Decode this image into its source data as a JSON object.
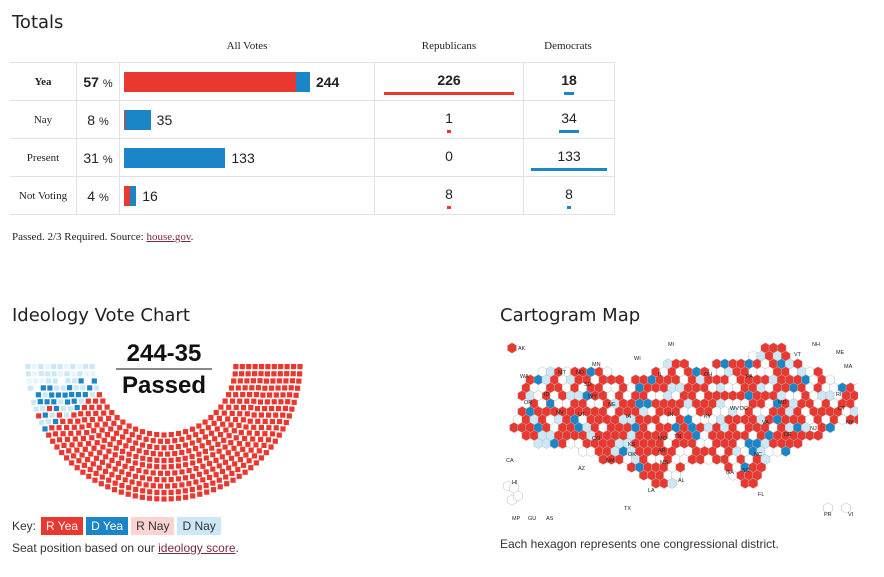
{
  "totals": {
    "title": "Totals",
    "headers": {
      "all_votes": "All Votes",
      "republicans": "Republicans",
      "democrats": "Democrats"
    },
    "pct_symbol": "%",
    "rows": [
      {
        "label": "Yea",
        "pct": "57",
        "total": "244",
        "rep": "226",
        "dem": "18"
      },
      {
        "label": "Nay",
        "pct": "8",
        "total": "35",
        "rep": "1",
        "dem": "34"
      },
      {
        "label": "Present",
        "pct": "31",
        "total": "133",
        "rep": "0",
        "dem": "133"
      },
      {
        "label": "Not Voting",
        "pct": "4",
        "total": "16",
        "rep": "8",
        "dem": "8"
      }
    ],
    "footnote_prefix": "Passed. 2/3 Required. Source: ",
    "footnote_link": "house.gov",
    "footnote_suffix": "."
  },
  "ideology": {
    "title": "Ideology Vote Chart",
    "score": "244-35",
    "result": "Passed",
    "key_label": "Key:",
    "key": [
      "R Yea",
      "D Yea",
      "R Nay",
      "D Nay"
    ],
    "seat_note_prefix": "Seat position based on our ",
    "seat_note_link": "ideology score",
    "seat_note_suffix": "."
  },
  "cartogram": {
    "title": "Cartogram Map",
    "note": "Each hexagon represents one congressional district.",
    "states": [
      "AK",
      "MI",
      "ME",
      "NH",
      "VT",
      "MA",
      "WI",
      "MN",
      "WA",
      "MT",
      "ND",
      "SD",
      "IL",
      "OH",
      "PA",
      "NY",
      "OR",
      "ID",
      "WY",
      "NE",
      "IA",
      "IN",
      "WV",
      "DC",
      "MD",
      "RI",
      "CT",
      "NV",
      "UT",
      "CO",
      "KS",
      "MO",
      "KY",
      "VA",
      "DE",
      "NJ",
      "CA",
      "AZ",
      "NM",
      "OK",
      "AR",
      "TN",
      "NC",
      "SC",
      "GA",
      "AL",
      "MS",
      "LA",
      "TX",
      "FL",
      "HI",
      "MP",
      "GU",
      "AS",
      "PR",
      "VI"
    ]
  },
  "colors": {
    "r_yea": "#e8382f",
    "d_yea": "#1a86c8",
    "r_nay": "#fbd4d2",
    "d_nay": "#cce7f5",
    "empty": "#ffffff"
  },
  "chart_data": {
    "type": "table",
    "title": "Totals",
    "columns": [
      "All Votes",
      "Republicans",
      "Democrats"
    ],
    "categories": [
      "Yea",
      "Nay",
      "Present",
      "Not Voting"
    ],
    "series": [
      {
        "name": "All Votes",
        "values": [
          244,
          35,
          133,
          16
        ]
      },
      {
        "name": "Republicans",
        "values": [
          226,
          1,
          0,
          8
        ]
      },
      {
        "name": "Democrats",
        "values": [
          18,
          34,
          133,
          8
        ]
      }
    ],
    "percent": [
      57,
      8,
      31,
      4
    ]
  }
}
